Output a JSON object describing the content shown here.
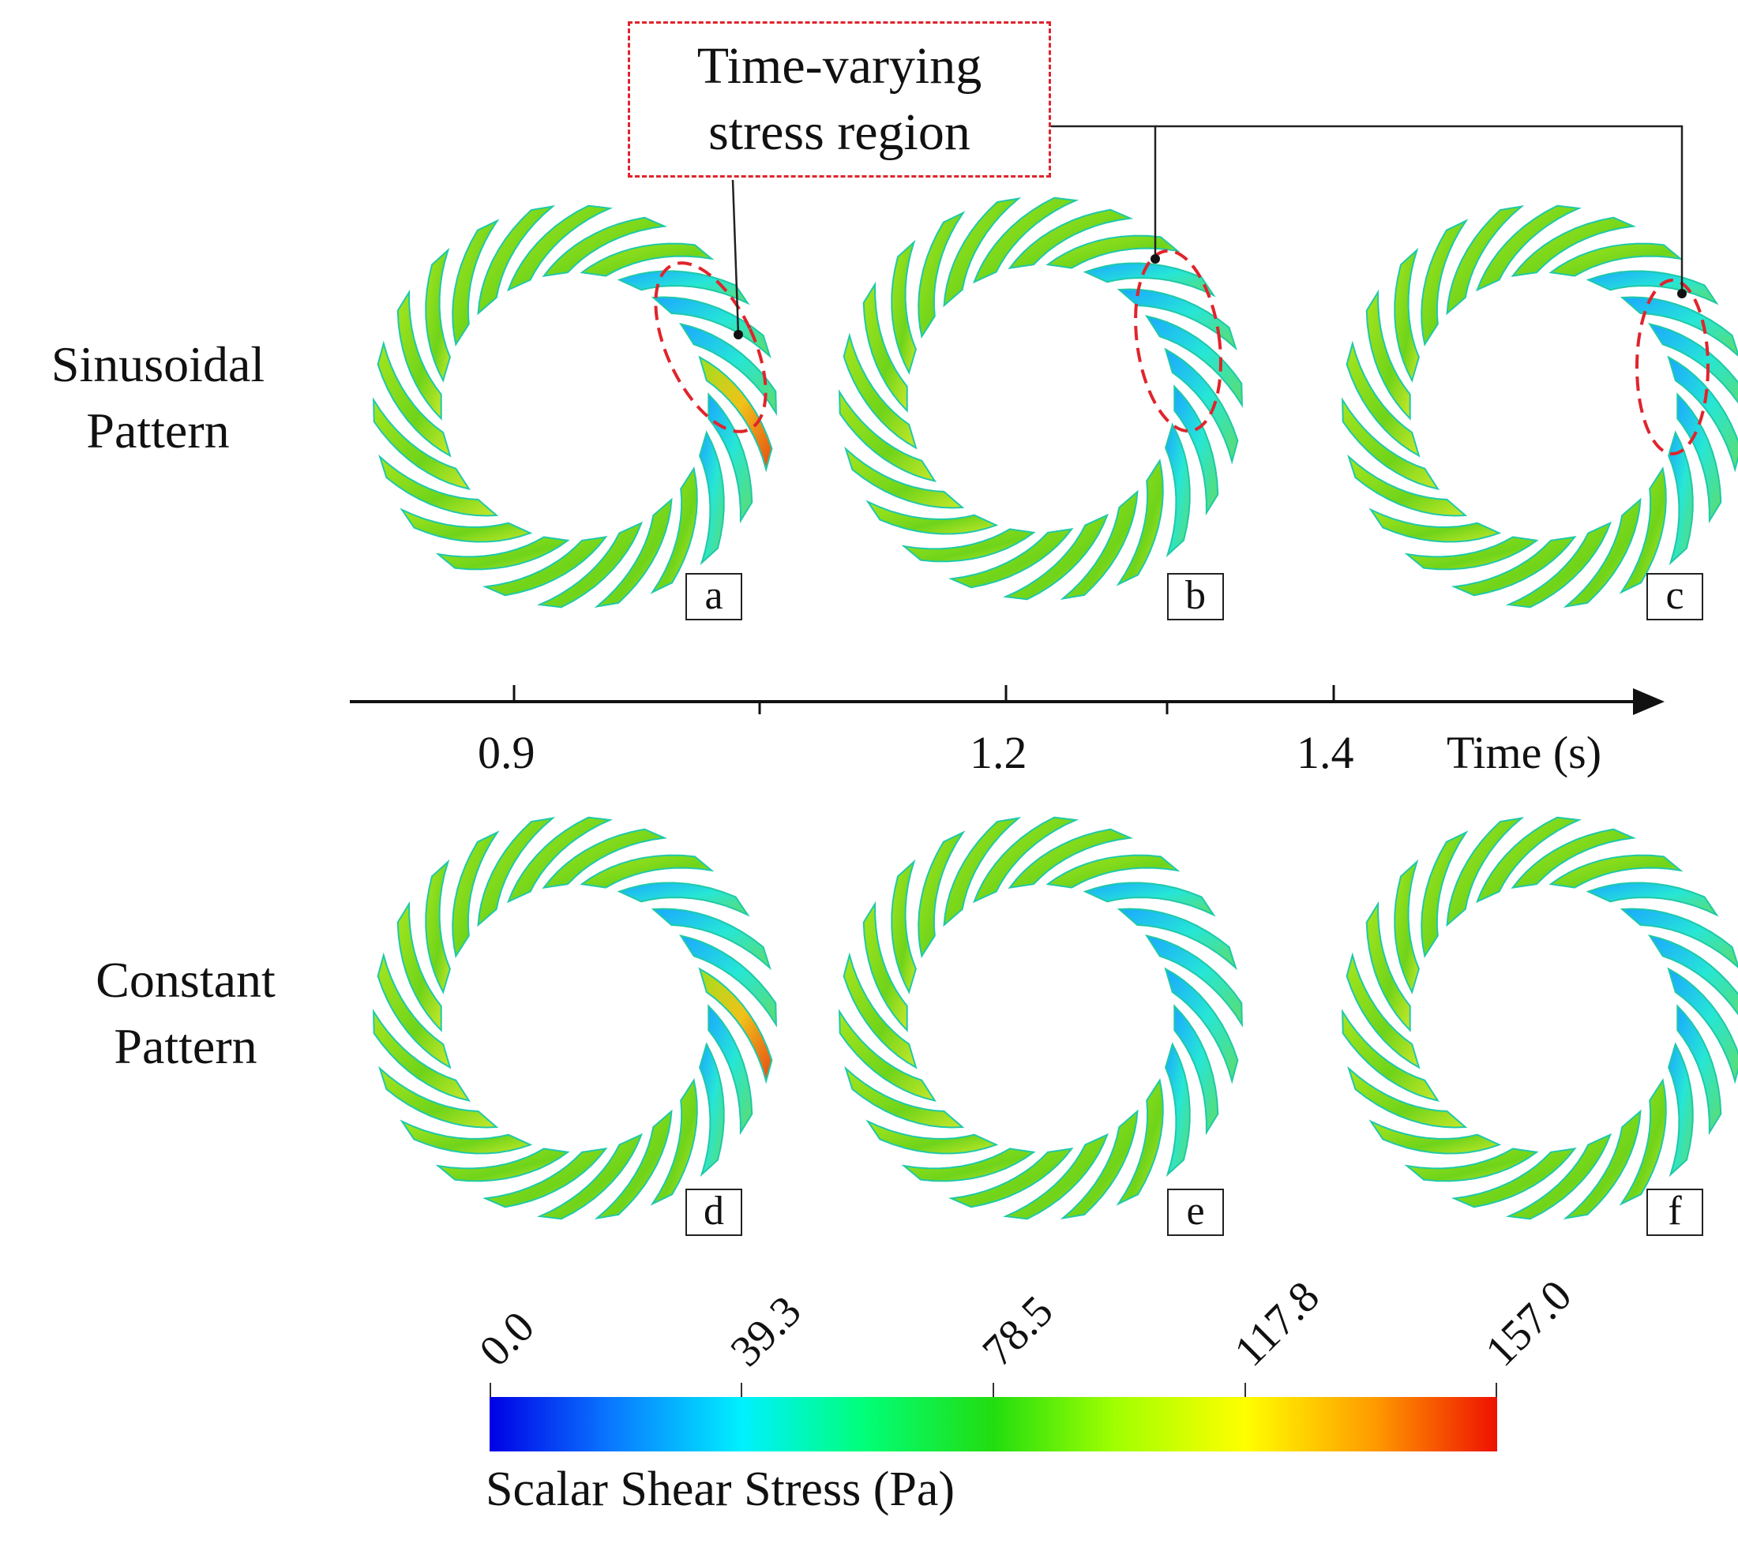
{
  "annotation": {
    "line1": "Time-varying",
    "line2": "stress region",
    "color": "#e0242c"
  },
  "rows": [
    {
      "label_line1": "Sinusoidal",
      "label_line2": "Pattern"
    },
    {
      "label_line1": "Constant",
      "label_line2": "Pattern"
    }
  ],
  "panels": [
    "a",
    "b",
    "c",
    "d",
    "e",
    "f"
  ],
  "time_axis": {
    "ticks": [
      "0.9",
      "1.2",
      "1.4"
    ],
    "title": "Time (s)"
  },
  "colorbar": {
    "ticks": [
      "0.0",
      "39.3",
      "78.5",
      "117.8",
      "157.0"
    ],
    "title": "Scalar Shear Stress (Pa)",
    "min": 0.0,
    "max": 157.0
  },
  "colors": {
    "blade_fill": "#7fd21c",
    "blade_edge": "#1fc9a8",
    "highlight": "#e0242c"
  }
}
